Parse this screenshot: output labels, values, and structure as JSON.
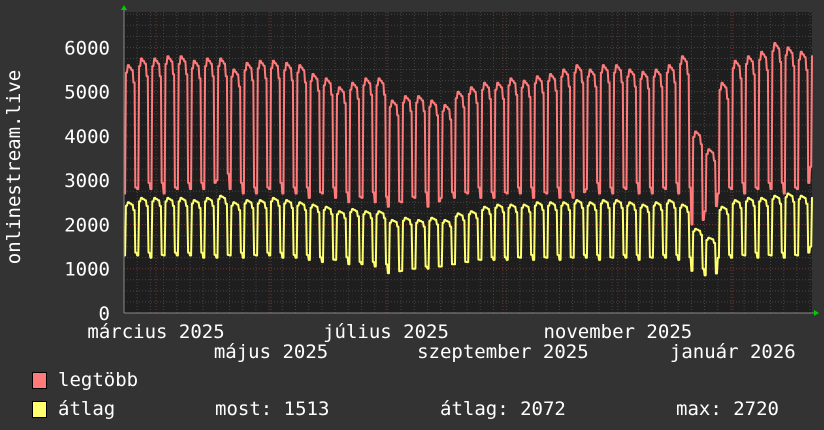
{
  "chart_data": {
    "type": "line",
    "ylabel": "onlinestream.live",
    "ylim": [
      0,
      6800
    ],
    "yticks": [
      0,
      1000,
      2000,
      3000,
      4000,
      5000,
      6000
    ],
    "ytick_labels": [
      "0",
      "1000",
      "2000",
      "3000",
      "4000",
      "5000",
      "6000"
    ],
    "xlim": [
      "2025-02-12",
      "2026-02-12"
    ],
    "xtick_labels": [
      "március 2025",
      "május 2025",
      "július 2025",
      "szeptember 2025",
      "november 2025",
      "január 2026"
    ],
    "xtick_dates": [
      "2025-03-01",
      "2025-05-01",
      "2025-07-01",
      "2025-09-01",
      "2025-11-01",
      "2026-01-01"
    ],
    "grid": true,
    "legend_placement": "bottom-left",
    "weekly_note_resolution": "weekly weekday peak / weekend low",
    "series": [
      {
        "name": "legtöbb",
        "color": "#ff7b7b",
        "weekly_high": [
          5600,
          5750,
          5750,
          5800,
          5800,
          5700,
          5750,
          5750,
          5500,
          5650,
          5700,
          5700,
          5650,
          5600,
          5400,
          5300,
          5100,
          5200,
          5300,
          5300,
          4800,
          4900,
          4900,
          4800,
          4700,
          5000,
          5100,
          5200,
          5200,
          5300,
          5250,
          5350,
          5400,
          5500,
          5600,
          5500,
          5600,
          5600,
          5500,
          5450,
          5500,
          5600,
          5800,
          4100,
          3700,
          5200,
          5700,
          5800,
          5900,
          6100,
          6000,
          5900,
          6000
        ],
        "weekly_low": [
          2700,
          2800,
          2800,
          2700,
          2800,
          2800,
          2800,
          3000,
          2800,
          2700,
          2700,
          2800,
          2700,
          2700,
          2600,
          2700,
          2600,
          2500,
          2600,
          2500,
          2400,
          2500,
          2600,
          2400,
          2600,
          2600,
          2700,
          2600,
          2600,
          2700,
          2700,
          2600,
          2700,
          2600,
          2600,
          2800,
          2700,
          2700,
          2800,
          2700,
          2700,
          2800,
          2700,
          2000,
          2300,
          2700,
          2800,
          2700,
          2800,
          2800,
          2700,
          2800,
          3300
        ]
      },
      {
        "name": "átlag",
        "color": "#ffff70",
        "weekly_high": [
          2500,
          2600,
          2600,
          2600,
          2600,
          2550,
          2600,
          2650,
          2500,
          2550,
          2550,
          2600,
          2550,
          2500,
          2450,
          2400,
          2300,
          2350,
          2300,
          2300,
          2100,
          2150,
          2100,
          2150,
          2100,
          2250,
          2300,
          2400,
          2450,
          2450,
          2450,
          2500,
          2500,
          2500,
          2550,
          2500,
          2550,
          2550,
          2500,
          2450,
          2500,
          2550,
          2450,
          1900,
          1700,
          2400,
          2550,
          2600,
          2600,
          2650,
          2700,
          2650,
          2700
        ],
        "weekly_low": [
          1300,
          1300,
          1250,
          1300,
          1300,
          1300,
          1250,
          1250,
          1300,
          1250,
          1300,
          1300,
          1250,
          1250,
          1200,
          1150,
          1200,
          1100,
          1100,
          1050,
          900,
          950,
          1000,
          1000,
          1050,
          1100,
          1150,
          1200,
          1200,
          1200,
          1250,
          1200,
          1250,
          1200,
          1250,
          1250,
          1200,
          1250,
          1250,
          1200,
          1250,
          1250,
          1200,
          950,
          850,
          1250,
          1250,
          1300,
          1250,
          1300,
          1250,
          1300,
          1500
        ]
      }
    ]
  },
  "legend": {
    "items": [
      {
        "label": "legtöbb",
        "color": "#ff7b7b"
      },
      {
        "label": "átlag",
        "color": "#ffff70"
      }
    ],
    "stats": {
      "most": "most: 1513",
      "atlag": "átlag: 2072",
      "max": "max: 2720"
    }
  }
}
